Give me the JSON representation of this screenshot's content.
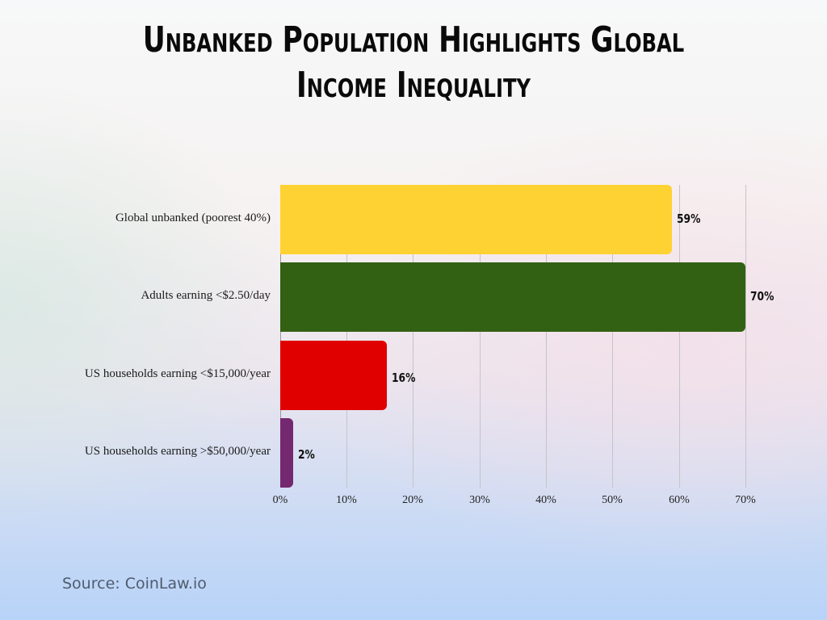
{
  "title_line1": "Unbanked Population Highlights Global",
  "title_line2": "Income Inequality",
  "source": "Source: CoinLaw.io",
  "chart_data": {
    "type": "bar",
    "orientation": "horizontal",
    "title": "Unbanked Population Highlights Global Income Inequality",
    "categories": [
      "Global unbanked (poorest 40%)",
      "Adults earning <$2.50/day",
      "US households earning <$15,000/year",
      "US households earning >$50,000/year"
    ],
    "values": [
      59,
      70,
      16,
      2
    ],
    "value_labels": [
      "59%",
      "70%",
      "16%",
      "2%"
    ],
    "colors": [
      "#fed232",
      "#336113",
      "#e00000",
      "#74286f"
    ],
    "xlabel": "",
    "ylabel": "",
    "xlim": [
      0,
      70
    ],
    "x_ticks": [
      "0%",
      "10%",
      "20%",
      "30%",
      "40%",
      "50%",
      "60%",
      "70%"
    ],
    "grid": true,
    "legend": "none"
  }
}
